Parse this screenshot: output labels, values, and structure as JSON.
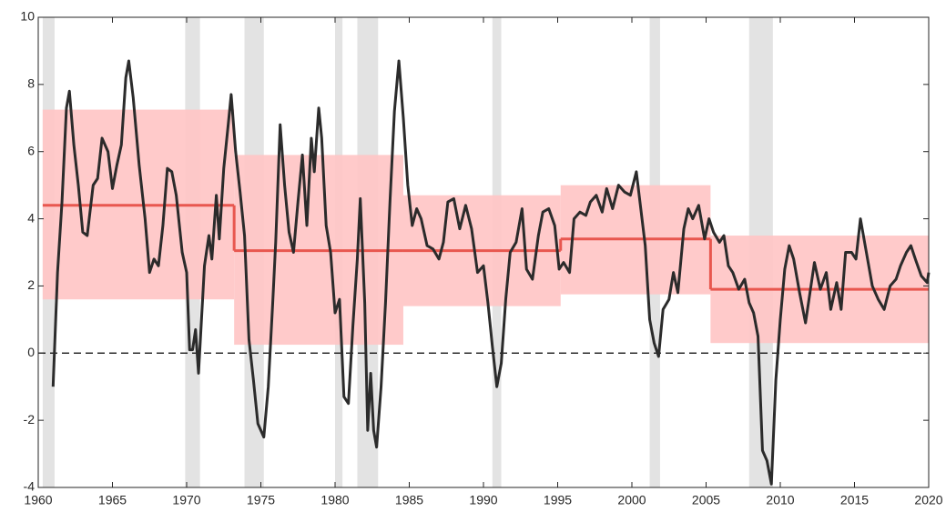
{
  "chart_data": {
    "type": "line",
    "xlim": [
      1960,
      2020
    ],
    "ylim": [
      -4,
      10
    ],
    "xticks": [
      1960,
      1965,
      1970,
      1975,
      1980,
      1985,
      1990,
      1995,
      2000,
      2005,
      2010,
      2015,
      2020
    ],
    "yticks": [
      -4,
      -2,
      0,
      2,
      4,
      6,
      8,
      10
    ],
    "reference_line": 0,
    "recession_color": "#e3e3e3",
    "recessions": [
      [
        1960.3,
        1961.1
      ],
      [
        1969.9,
        1970.9
      ],
      [
        1973.9,
        1975.2
      ],
      [
        1980.0,
        1980.5
      ],
      [
        1981.5,
        1982.9
      ],
      [
        1990.6,
        1991.2
      ],
      [
        2001.2,
        2001.9
      ],
      [
        2007.9,
        2009.5
      ]
    ],
    "regime_band_color": "#ffc4c4",
    "regime_line_color": "#e8574f",
    "regimes": [
      {
        "start": 1960.3,
        "end": 1973.2,
        "mean": 4.4,
        "lower": 1.6,
        "upper": 7.25
      },
      {
        "start": 1973.2,
        "end": 1984.6,
        "mean": 3.05,
        "lower": 0.25,
        "upper": 5.9
      },
      {
        "start": 1984.6,
        "end": 1995.2,
        "mean": 3.05,
        "lower": 1.4,
        "upper": 4.7
      },
      {
        "start": 1995.2,
        "end": 2005.3,
        "mean": 3.4,
        "lower": 1.75,
        "upper": 5.0
      },
      {
        "start": 2005.3,
        "end": 2020,
        "mean": 1.9,
        "lower": 0.3,
        "upper": 3.5
      }
    ],
    "x": [
      1961.0,
      1961.3,
      1961.6,
      1961.9,
      1962.1,
      1962.4,
      1962.7,
      1963.0,
      1963.3,
      1963.7,
      1964.0,
      1964.3,
      1964.7,
      1965.0,
      1965.3,
      1965.6,
      1965.9,
      1966.1,
      1966.4,
      1966.8,
      1967.2,
      1967.5,
      1967.8,
      1968.1,
      1968.4,
      1968.7,
      1969.0,
      1969.3,
      1969.7,
      1970.0,
      1970.2,
      1970.4,
      1970.6,
      1970.8,
      1971.2,
      1971.5,
      1971.7,
      1972.0,
      1972.2,
      1972.5,
      1972.8,
      1973.0,
      1973.3,
      1973.6,
      1973.9,
      1974.2,
      1974.5,
      1974.8,
      1975.0,
      1975.2,
      1975.5,
      1975.8,
      1976.0,
      1976.3,
      1976.6,
      1976.9,
      1977.2,
      1977.5,
      1977.8,
      1978.1,
      1978.4,
      1978.6,
      1978.9,
      1979.1,
      1979.4,
      1979.7,
      1980.0,
      1980.3,
      1980.6,
      1980.9,
      1981.2,
      1981.5,
      1981.7,
      1982.0,
      1982.2,
      1982.4,
      1982.6,
      1982.8,
      1983.1,
      1983.4,
      1983.7,
      1984.0,
      1984.3,
      1984.6,
      1984.9,
      1985.2,
      1985.5,
      1985.8,
      1986.2,
      1986.6,
      1987.0,
      1987.3,
      1987.6,
      1988.0,
      1988.4,
      1988.8,
      1989.2,
      1989.6,
      1990.0,
      1990.3,
      1990.6,
      1990.9,
      1991.2,
      1991.5,
      1991.8,
      1992.2,
      1992.6,
      1992.9,
      1993.3,
      1993.7,
      1994.0,
      1994.4,
      1994.8,
      1995.1,
      1995.4,
      1995.8,
      1996.1,
      1996.5,
      1996.9,
      1997.2,
      1997.6,
      1998.0,
      1998.3,
      1998.7,
      1999.1,
      1999.5,
      1999.9,
      2000.3,
      2000.6,
      2000.9,
      2001.2,
      2001.5,
      2001.8,
      2002.1,
      2002.5,
      2002.8,
      2003.1,
      2003.5,
      2003.8,
      2004.1,
      2004.5,
      2004.9,
      2005.2,
      2005.5,
      2005.9,
      2006.2,
      2006.5,
      2006.8,
      2007.2,
      2007.6,
      2007.9,
      2008.2,
      2008.5,
      2008.8,
      2009.1,
      2009.4,
      2009.7,
      2010.0,
      2010.3,
      2010.6,
      2010.9,
      2011.3,
      2011.7,
      2012.0,
      2012.3,
      2012.7,
      2013.1,
      2013.4,
      2013.8,
      2014.1,
      2014.4,
      2014.8,
      2015.1,
      2015.4,
      2015.8,
      2016.2,
      2016.6,
      2017.0,
      2017.4,
      2017.8,
      2018.1,
      2018.5,
      2018.8,
      2019.1,
      2019.5,
      2019.9,
      2020.0
    ],
    "series": [
      {
        "color": "#2b2b2b",
        "values": [
          -1.0,
          2.4,
          4.5,
          7.3,
          7.8,
          6.2,
          5.0,
          3.6,
          3.5,
          5.0,
          5.2,
          6.4,
          6.0,
          4.9,
          5.6,
          6.2,
          8.2,
          8.7,
          7.6,
          5.6,
          4.0,
          2.4,
          2.8,
          2.6,
          3.8,
          5.5,
          5.4,
          4.7,
          3.0,
          2.4,
          0.1,
          0.1,
          0.7,
          -0.6,
          2.6,
          3.5,
          2.8,
          4.7,
          3.4,
          5.5,
          6.8,
          7.7,
          6.0,
          4.8,
          3.5,
          0.4,
          -0.8,
          -2.1,
          -2.3,
          -2.5,
          -1.0,
          1.5,
          3.3,
          6.8,
          5.0,
          3.6,
          3.0,
          4.5,
          5.9,
          3.8,
          6.4,
          5.4,
          7.3,
          6.4,
          3.8,
          3.0,
          1.2,
          1.6,
          -1.3,
          -1.5,
          0.8,
          2.8,
          4.6,
          1.5,
          -2.3,
          -0.6,
          -2.3,
          -2.8,
          -1.0,
          1.5,
          4.5,
          7.2,
          8.7,
          7.0,
          5.0,
          3.8,
          4.3,
          4.0,
          3.2,
          3.1,
          2.8,
          3.3,
          4.5,
          4.6,
          3.7,
          4.4,
          3.7,
          2.4,
          2.6,
          1.5,
          0.2,
          -1.0,
          -0.3,
          1.6,
          3.0,
          3.3,
          4.3,
          2.5,
          2.2,
          3.5,
          4.2,
          4.3,
          3.8,
          2.5,
          2.7,
          2.4,
          4.0,
          4.2,
          4.1,
          4.5,
          4.7,
          4.2,
          4.9,
          4.3,
          5.0,
          4.8,
          4.7,
          5.4,
          4.3,
          3.2,
          1.0,
          0.3,
          -0.1,
          1.3,
          1.6,
          2.4,
          1.8,
          3.7,
          4.3,
          4.0,
          4.4,
          3.4,
          4.0,
          3.6,
          3.3,
          3.5,
          2.6,
          2.4,
          1.9,
          2.2,
          1.5,
          1.2,
          0.5,
          -2.9,
          -3.2,
          -3.9,
          -0.8,
          1.0,
          2.5,
          3.2,
          2.8,
          1.8,
          0.9,
          1.8,
          2.7,
          1.9,
          2.4,
          1.3,
          2.1,
          1.3,
          3.0,
          3.0,
          2.8,
          4.0,
          3.0,
          2.0,
          1.6,
          1.3,
          2.0,
          2.2,
          2.6,
          3.0,
          3.2,
          2.8,
          2.3,
          2.1,
          2.4
        ]
      }
    ]
  }
}
